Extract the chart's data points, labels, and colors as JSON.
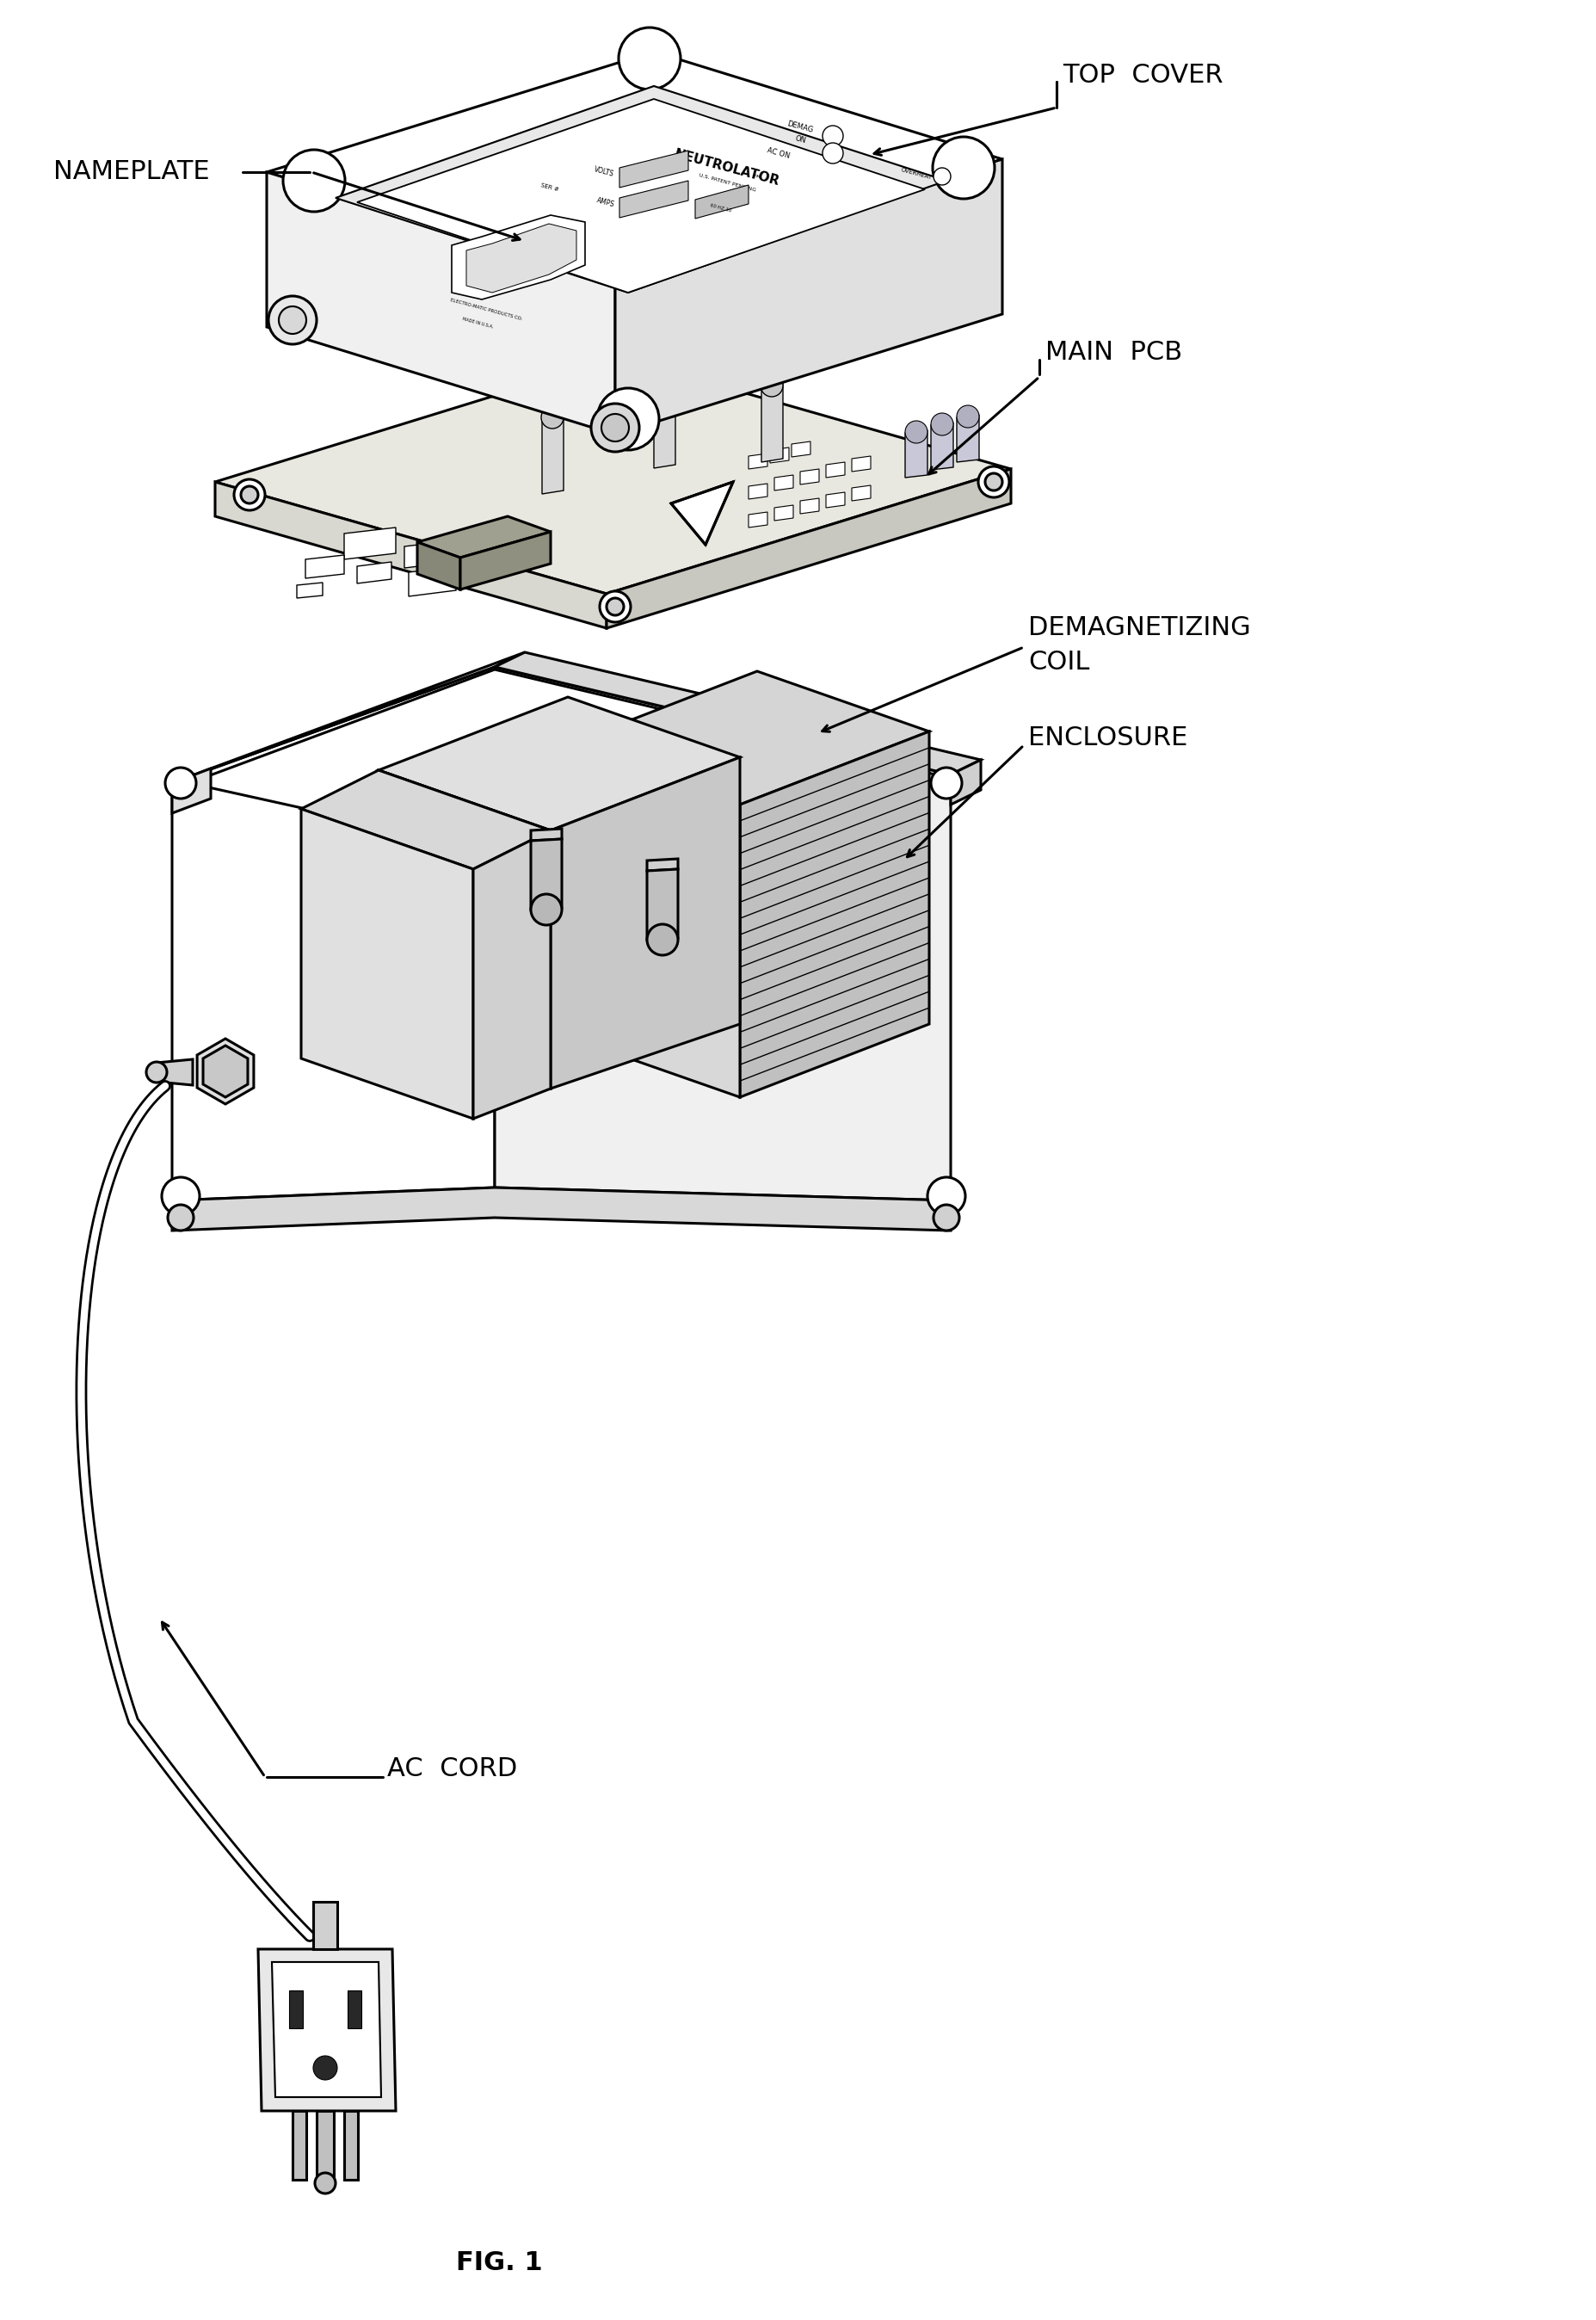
{
  "fig_label": "FIG. 1",
  "background_color": "#ffffff",
  "line_color": "#000000",
  "labels": {
    "top_cover": "TOP  COVER",
    "nameplate": "NAMEPLATE",
    "main_pcb": "MAIN  PCB",
    "demagnetizing_coil_line1": "DEMAGNETIZING",
    "demagnetizing_coil_line2": "COIL",
    "enclosure": "ENCLOSURE",
    "ac_cord": "AC  CORD"
  },
  "label_fontsize": 22,
  "fig_label_fontsize": 22,
  "line_width": 2.2
}
